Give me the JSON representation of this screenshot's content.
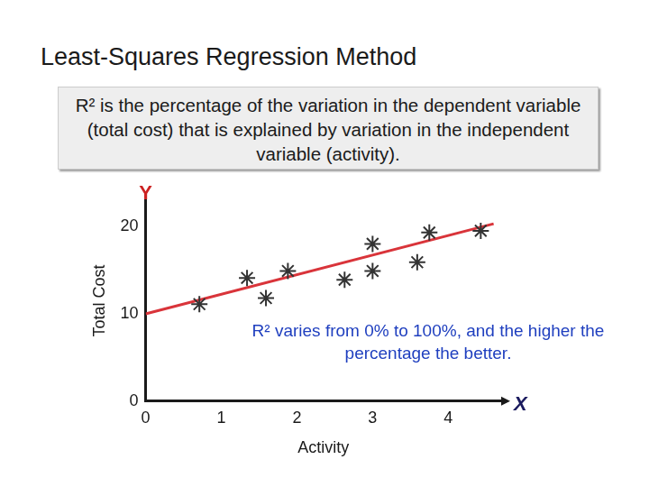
{
  "chart_data": {
    "type": "scatter",
    "title": "Least-Squares Regression Method",
    "annotations": [
      "R² is the percentage of the variation in the dependent variable (total cost) that is explained by variation in the independent variable (activity).",
      "R² varies from 0% to 100%, and the higher the percentage the better."
    ],
    "x_label": "Activity",
    "y_label": "Total Cost",
    "axis_symbols": {
      "x": "X",
      "y": "Y"
    },
    "xlim": [
      0,
      4.7
    ],
    "ylim": [
      0,
      23
    ],
    "xticks": [
      0,
      1,
      2,
      3,
      4
    ],
    "yticks": [
      0,
      10,
      20
    ],
    "grid": false,
    "series": [
      {
        "type": "scatter",
        "color": "#333333",
        "marker": "star",
        "x": [
          0.71,
          1.34,
          1.59,
          1.88,
          2.63,
          3.0,
          3.0,
          3.59,
          3.75,
          4.43
        ],
        "values": [
          11.1,
          14.1,
          11.8,
          14.9,
          13.9,
          18.0,
          14.9,
          15.9,
          19.3,
          19.5
        ]
      },
      {
        "type": "line",
        "color": "#d9343a",
        "line_style": "solid",
        "x": [
          0,
          4.6
        ],
        "values": [
          10,
          20.3
        ]
      }
    ]
  }
}
